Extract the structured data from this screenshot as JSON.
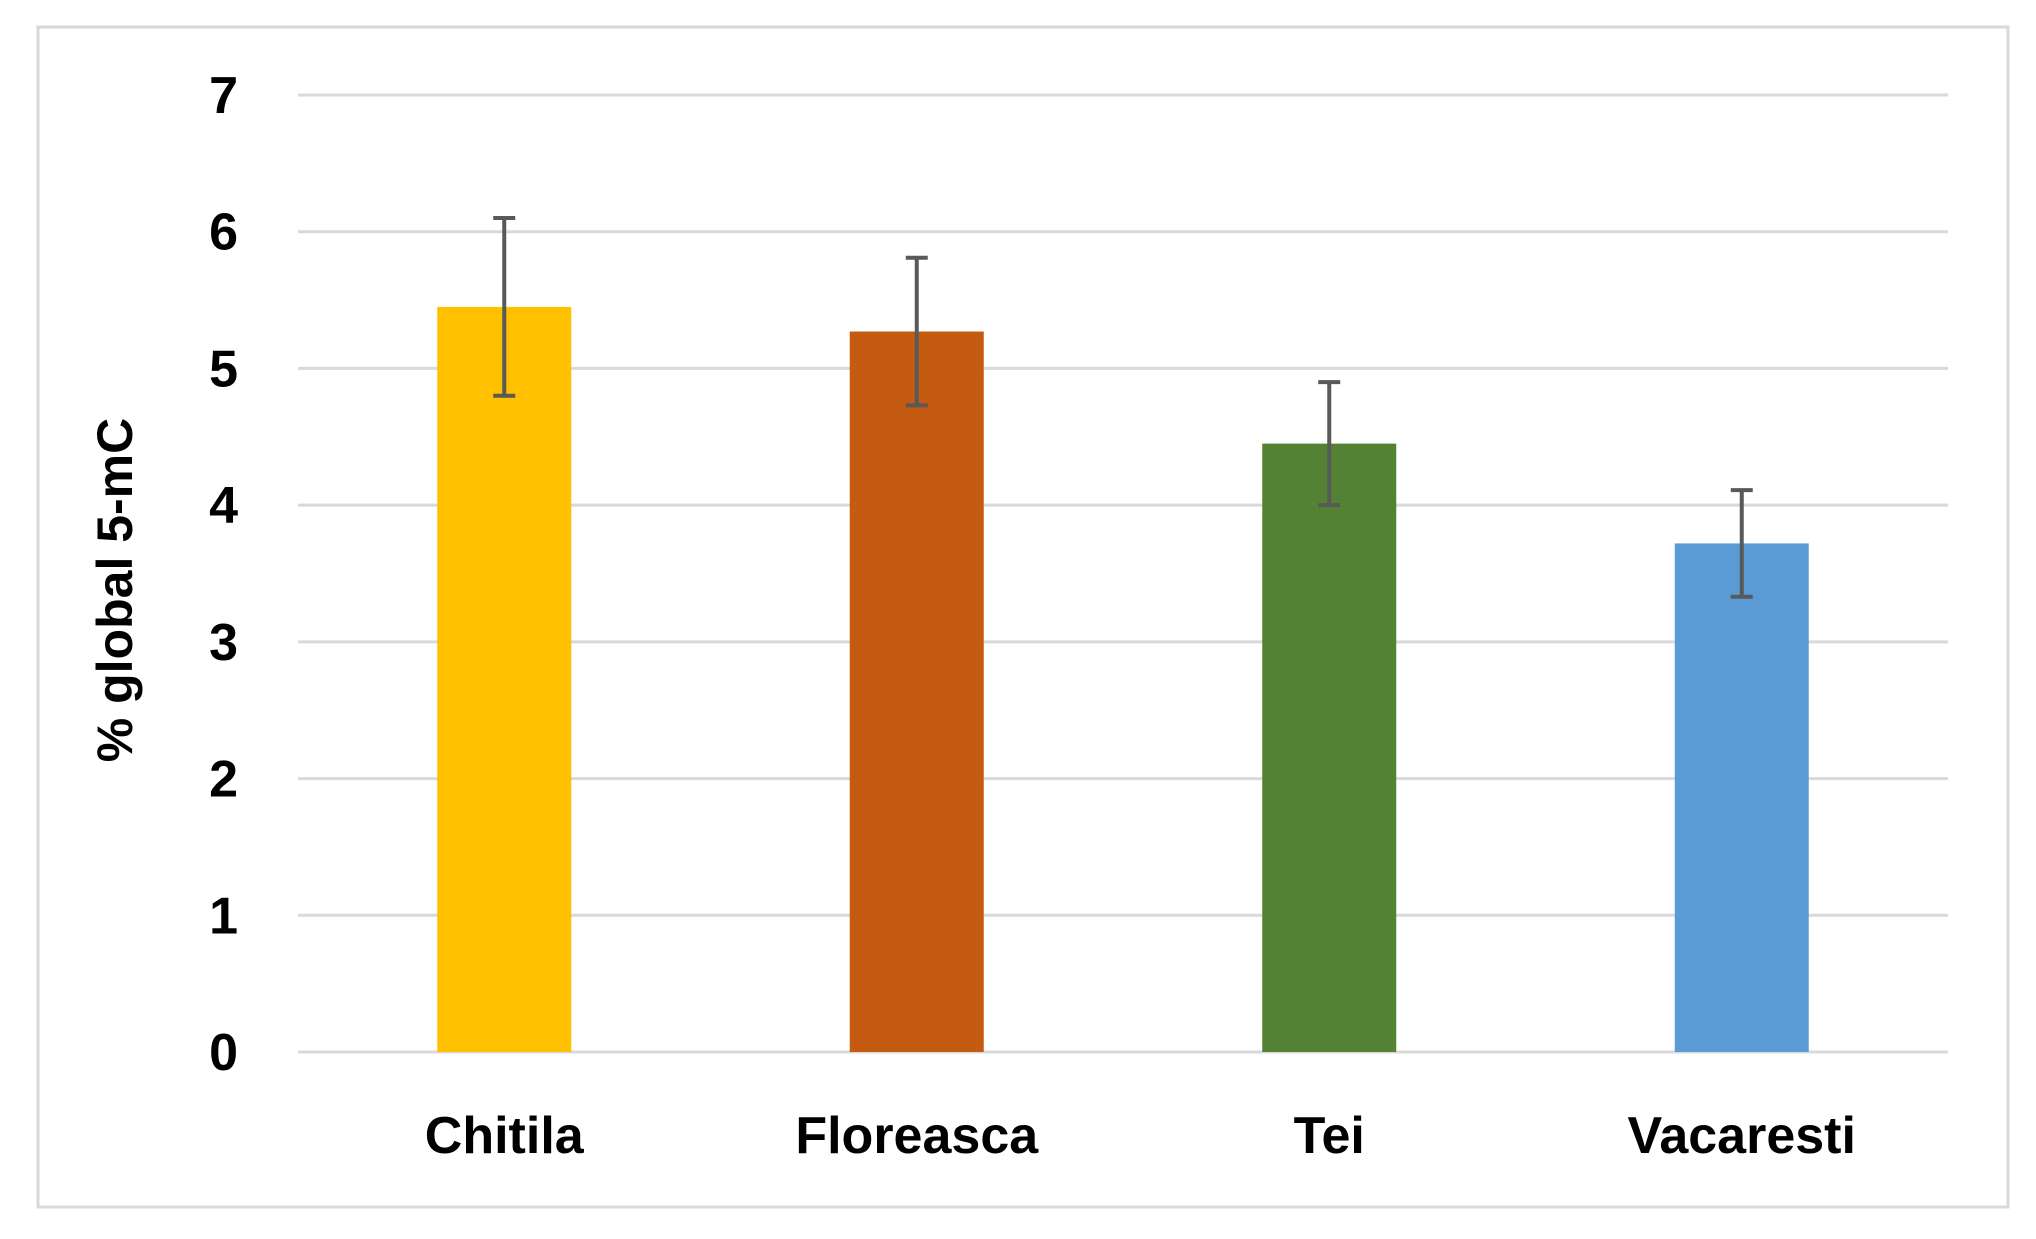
{
  "chart_data": {
    "type": "bar",
    "title": "",
    "xlabel": "",
    "ylabel": "% global 5-mC",
    "categories": [
      "Chitila",
      "Floreasca",
      "Tei",
      "Vacaresti"
    ],
    "values": [
      5.45,
      5.27,
      4.45,
      3.72
    ],
    "error": [
      0.65,
      0.54,
      0.45,
      0.39
    ],
    "colors": [
      "#FFC000",
      "#C55A11",
      "#548235",
      "#5B9BD5"
    ],
    "ylim": [
      0,
      7
    ],
    "yticks": [
      "0",
      "1",
      "2",
      "3",
      "4",
      "5",
      "6",
      "7"
    ],
    "grid": true,
    "legend": "none"
  }
}
